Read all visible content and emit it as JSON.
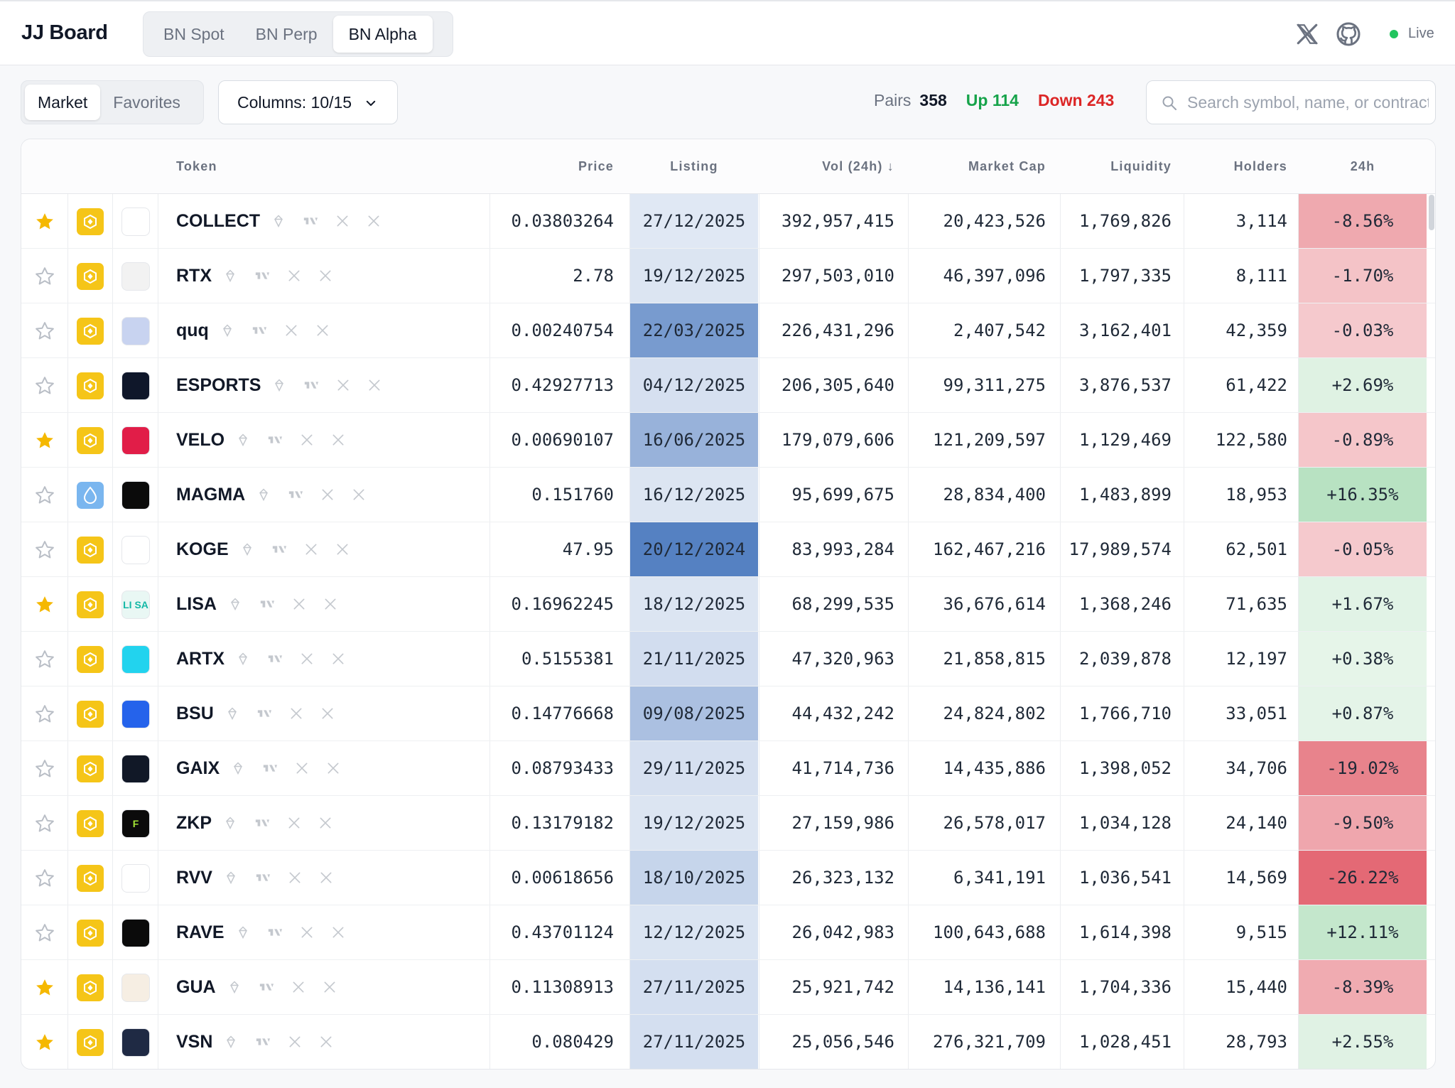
{
  "app": {
    "title": "JJ Board",
    "live_label": "Live"
  },
  "tabs": [
    {
      "label": "BN Spot",
      "active": false
    },
    {
      "label": "BN Perp",
      "active": false
    },
    {
      "label": "BN Alpha",
      "active": true
    }
  ],
  "view_toggle": [
    {
      "label": "Market",
      "active": true
    },
    {
      "label": "Favorites",
      "active": false
    }
  ],
  "columns_button": "Columns: 10/15",
  "stats": {
    "pairs_label": "Pairs",
    "pairs": "358",
    "up": "Up 114",
    "down": "Down 243"
  },
  "search": {
    "placeholder": "Search symbol, name, or contract",
    "value": ""
  },
  "colors": {
    "up": "#16a34a",
    "down": "#dc2626",
    "chain_bnb": "#f5c518",
    "star_fav": "#f5b800"
  },
  "table": {
    "headers": {
      "token": "Token",
      "price": "Price",
      "listing": "Listing",
      "vol": "Vol (24h) ↓",
      "mcap": "Market Cap",
      "liq": "Liquidity",
      "holders": "Holders",
      "change": "24h"
    },
    "rows": [
      {
        "fav": true,
        "chain": "bnb",
        "logo_text": "",
        "logo_bg": "#fff",
        "symbol": "COLLECT",
        "price": "0.03803264",
        "listing": "27/12/2025",
        "vol": "392,957,415",
        "mcap": "20,423,526",
        "liq": "1,769,826",
        "holders": "3,114",
        "change": "-8.56%",
        "change_pct": -8.56
      },
      {
        "fav": false,
        "chain": "bnb",
        "logo_text": "",
        "logo_bg": "#f2f2f2",
        "symbol": "RTX",
        "price": "2.78",
        "listing": "19/12/2025",
        "vol": "297,503,010",
        "mcap": "46,397,096",
        "liq": "1,797,335",
        "holders": "8,111",
        "change": "-1.70%",
        "change_pct": -1.7
      },
      {
        "fav": false,
        "chain": "bnb",
        "logo_text": "",
        "logo_bg": "#c8d3f0",
        "symbol": "quq",
        "price": "0.00240754",
        "listing": "22/03/2025",
        "vol": "226,431,296",
        "mcap": "2,407,542",
        "liq": "3,162,401",
        "holders": "42,359",
        "change": "-0.03%",
        "change_pct": -0.03
      },
      {
        "fav": false,
        "chain": "bnb",
        "logo_text": "",
        "logo_bg": "#0f172a",
        "symbol": "ESPORTS",
        "price": "0.42927713",
        "listing": "04/12/2025",
        "vol": "206,305,640",
        "mcap": "99,311,275",
        "liq": "3,876,537",
        "holders": "61,422",
        "change": "+2.69%",
        "change_pct": 2.69
      },
      {
        "fav": true,
        "chain": "bnb",
        "logo_text": "",
        "logo_bg": "#e11d48",
        "symbol": "VELO",
        "price": "0.00690107",
        "listing": "16/06/2025",
        "vol": "179,079,606",
        "mcap": "121,209,597",
        "liq": "1,129,469",
        "holders": "122,580",
        "change": "-0.89%",
        "change_pct": -0.89
      },
      {
        "fav": false,
        "chain": "blue",
        "logo_text": "",
        "logo_bg": "#0b0b0b",
        "symbol": "MAGMA",
        "price": "0.151760",
        "listing": "16/12/2025",
        "vol": "95,699,675",
        "mcap": "28,834,400",
        "liq": "1,483,899",
        "holders": "18,953",
        "change": "+16.35%",
        "change_pct": 16.35
      },
      {
        "fav": false,
        "chain": "bnb",
        "logo_text": "",
        "logo_bg": "#fff",
        "symbol": "KOGE",
        "price": "47.95",
        "listing": "20/12/2024",
        "vol": "83,993,284",
        "mcap": "162,467,216",
        "liq": "17,989,574",
        "holders": "62,501",
        "change": "-0.05%",
        "change_pct": -0.05
      },
      {
        "fav": true,
        "chain": "bnb",
        "logo_text": "LI SA",
        "logo_bg": "#e9f7f4",
        "symbol": "LISA",
        "price": "0.16962245",
        "listing": "18/12/2025",
        "vol": "68,299,535",
        "mcap": "36,676,614",
        "liq": "1,368,246",
        "holders": "71,635",
        "change": "+1.67%",
        "change_pct": 1.67
      },
      {
        "fav": false,
        "chain": "bnb",
        "logo_text": "",
        "logo_bg": "#22d3ee",
        "symbol": "ARTX",
        "price": "0.5155381",
        "listing": "21/11/2025",
        "vol": "47,320,963",
        "mcap": "21,858,815",
        "liq": "2,039,878",
        "holders": "12,197",
        "change": "+0.38%",
        "change_pct": 0.38
      },
      {
        "fav": false,
        "chain": "bnb",
        "logo_text": "",
        "logo_bg": "#2563eb",
        "symbol": "BSU",
        "price": "0.14776668",
        "listing": "09/08/2025",
        "vol": "44,432,242",
        "mcap": "24,824,802",
        "liq": "1,766,710",
        "holders": "33,051",
        "change": "+0.87%",
        "change_pct": 0.87
      },
      {
        "fav": false,
        "chain": "bnb",
        "logo_text": "",
        "logo_bg": "#111827",
        "symbol": "GAIX",
        "price": "0.08793433",
        "listing": "29/11/2025",
        "vol": "41,714,736",
        "mcap": "14,435,886",
        "liq": "1,398,052",
        "holders": "34,706",
        "change": "-19.02%",
        "change_pct": -19.02
      },
      {
        "fav": false,
        "chain": "bnb",
        "logo_text": "F",
        "logo_bg": "#0b0b0b",
        "symbol": "ZKP",
        "price": "0.13179182",
        "listing": "19/12/2025",
        "vol": "27,159,986",
        "mcap": "26,578,017",
        "liq": "1,034,128",
        "holders": "24,140",
        "change": "-9.50%",
        "change_pct": -9.5
      },
      {
        "fav": false,
        "chain": "bnb",
        "logo_text": "",
        "logo_bg": "#fff",
        "symbol": "RVV",
        "price": "0.00618656",
        "listing": "18/10/2025",
        "vol": "26,323,132",
        "mcap": "6,341,191",
        "liq": "1,036,541",
        "holders": "14,569",
        "change": "-26.22%",
        "change_pct": -26.22
      },
      {
        "fav": false,
        "chain": "bnb",
        "logo_text": "",
        "logo_bg": "#0b0b0b",
        "symbol": "RAVE",
        "price": "0.43701124",
        "listing": "12/12/2025",
        "vol": "26,042,983",
        "mcap": "100,643,688",
        "liq": "1,614,398",
        "holders": "9,515",
        "change": "+12.11%",
        "change_pct": 12.11
      },
      {
        "fav": true,
        "chain": "bnb",
        "logo_text": "",
        "logo_bg": "#f6eee3",
        "symbol": "GUA",
        "price": "0.11308913",
        "listing": "27/11/2025",
        "vol": "25,921,742",
        "mcap": "14,136,141",
        "liq": "1,704,336",
        "holders": "15,440",
        "change": "-8.39%",
        "change_pct": -8.39
      },
      {
        "fav": true,
        "chain": "bnb",
        "logo_text": "",
        "logo_bg": "#1f2a44",
        "symbol": "VSN",
        "price": "0.080429",
        "listing": "27/11/2025",
        "vol": "25,056,546",
        "mcap": "276,321,709",
        "liq": "1,028,451",
        "holders": "28,793",
        "change": "+2.55%",
        "change_pct": 2.55
      }
    ]
  }
}
